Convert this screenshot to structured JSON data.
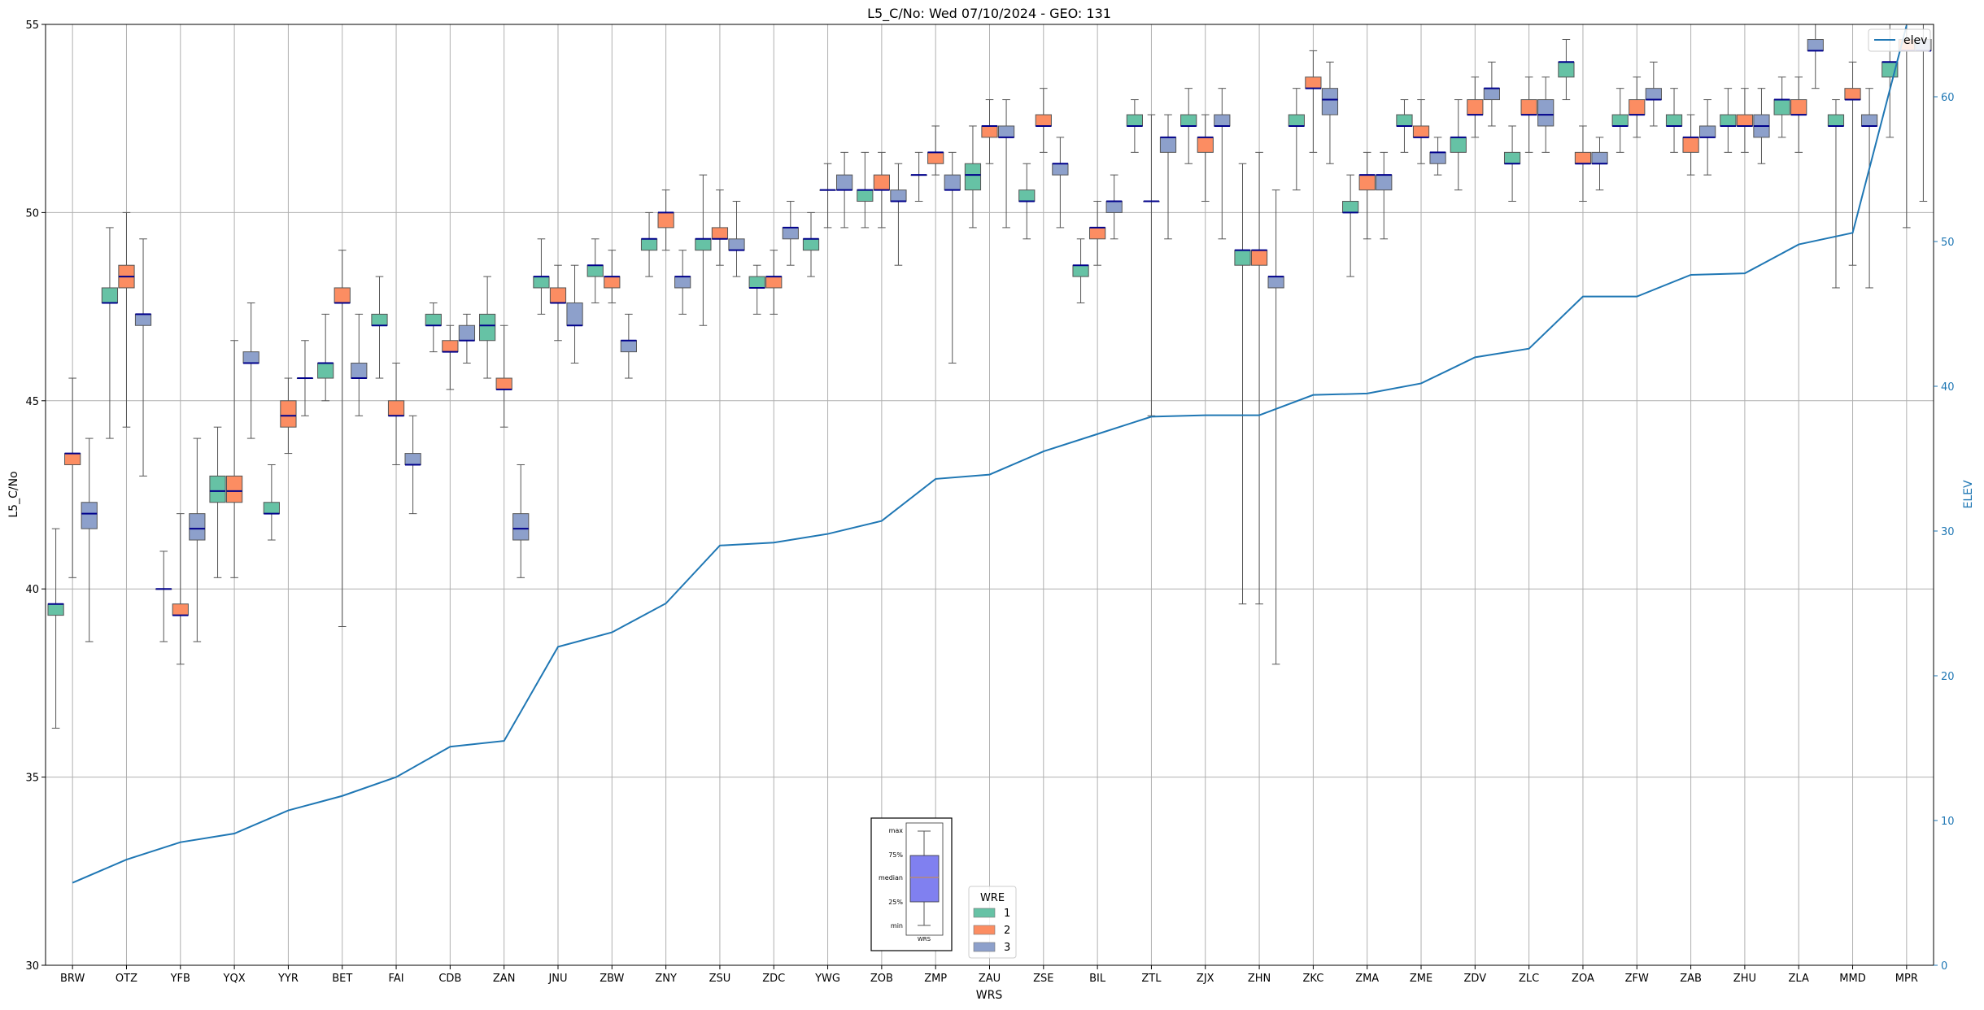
{
  "chart_data": {
    "type": "box",
    "title": "L5_C/No: Wed 07/10/2024 - GEO: 131",
    "xlabel": "WRS",
    "ylabel": "L5_C/No",
    "y2label": "ELEV",
    "ylim": [
      30,
      55
    ],
    "y2lim": [
      0,
      65
    ],
    "yticks": [
      30,
      35,
      40,
      45,
      50,
      55
    ],
    "y2ticks": [
      0,
      10,
      20,
      30,
      40,
      50,
      60
    ],
    "grid": true,
    "categories": [
      "BRW",
      "OTZ",
      "YFB",
      "YQX",
      "YYR",
      "BET",
      "FAI",
      "CDB",
      "ZAN",
      "JNU",
      "ZBW",
      "ZNY",
      "ZSU",
      "ZDC",
      "YWG",
      "ZOB",
      "ZMP",
      "ZAU",
      "ZSE",
      "BIL",
      "ZTL",
      "ZJX",
      "ZHN",
      "ZKC",
      "ZMA",
      "ZME",
      "ZDV",
      "ZLC",
      "ZOA",
      "ZFW",
      "ZAB",
      "ZHU",
      "ZLA",
      "MMD",
      "MPR"
    ],
    "wre_colors": {
      "1": "#66c2a5",
      "2": "#fc8d62",
      "3": "#8da0cb"
    },
    "legend_wre": {
      "title": "WRE",
      "entries": [
        "1",
        "2",
        "3"
      ],
      "position": "lower-center"
    },
    "legend_elev": {
      "label": "elev",
      "position": "upper-right",
      "color": "#1f77b4"
    },
    "box_key": {
      "labels": [
        "max",
        "75%",
        "median",
        "25%",
        "min"
      ],
      "xlabel": "WRS"
    },
    "boxes": [
      {
        "station": "BRW",
        "wre": 1,
        "min": 36.3,
        "q1": 39.3,
        "median": 39.6,
        "q3": 39.6,
        "max": 41.6
      },
      {
        "station": "BRW",
        "wre": 2,
        "min": 40.3,
        "q1": 43.3,
        "median": 43.6,
        "q3": 43.6,
        "max": 45.6
      },
      {
        "station": "BRW",
        "wre": 3,
        "min": 38.6,
        "q1": 41.6,
        "median": 42.0,
        "q3": 42.3,
        "max": 44.0
      },
      {
        "station": "OTZ",
        "wre": 1,
        "min": 44.0,
        "q1": 47.6,
        "median": 47.6,
        "q3": 48.0,
        "max": 49.6
      },
      {
        "station": "OTZ",
        "wre": 2,
        "min": 44.3,
        "q1": 48.0,
        "median": 48.3,
        "q3": 48.6,
        "max": 50.0
      },
      {
        "station": "OTZ",
        "wre": 3,
        "min": 43.0,
        "q1": 47.0,
        "median": 47.3,
        "q3": 47.3,
        "max": 49.3
      },
      {
        "station": "YFB",
        "wre": 1,
        "min": 38.6,
        "q1": 40.0,
        "median": 40.0,
        "q3": 40.0,
        "max": 41.0
      },
      {
        "station": "YFB",
        "wre": 2,
        "min": 38.0,
        "q1": 39.3,
        "median": 39.3,
        "q3": 39.6,
        "max": 42.0
      },
      {
        "station": "YFB",
        "wre": 3,
        "min": 38.6,
        "q1": 41.3,
        "median": 41.6,
        "q3": 42.0,
        "max": 44.0
      },
      {
        "station": "YQX",
        "wre": 1,
        "min": 40.3,
        "q1": 42.3,
        "median": 42.6,
        "q3": 43.0,
        "max": 44.3
      },
      {
        "station": "YQX",
        "wre": 2,
        "min": 40.3,
        "q1": 42.3,
        "median": 42.6,
        "q3": 43.0,
        "max": 46.6
      },
      {
        "station": "YQX",
        "wre": 3,
        "min": 44.0,
        "q1": 46.0,
        "median": 46.0,
        "q3": 46.3,
        "max": 47.6
      },
      {
        "station": "YYR",
        "wre": 1,
        "min": 41.3,
        "q1": 42.0,
        "median": 42.0,
        "q3": 42.3,
        "max": 43.3
      },
      {
        "station": "YYR",
        "wre": 2,
        "min": 43.6,
        "q1": 44.3,
        "median": 44.6,
        "q3": 45.0,
        "max": 45.6
      },
      {
        "station": "YYR",
        "wre": 3,
        "min": 44.6,
        "q1": 45.6,
        "median": 45.6,
        "q3": 45.6,
        "max": 46.6
      },
      {
        "station": "BET",
        "wre": 1,
        "min": 45.0,
        "q1": 45.6,
        "median": 46.0,
        "q3": 46.0,
        "max": 47.3
      },
      {
        "station": "BET",
        "wre": 2,
        "min": 39.0,
        "q1": 47.6,
        "median": 47.6,
        "q3": 48.0,
        "max": 49.0
      },
      {
        "station": "BET",
        "wre": 3,
        "min": 44.6,
        "q1": 45.6,
        "median": 45.6,
        "q3": 46.0,
        "max": 47.3
      },
      {
        "station": "FAI",
        "wre": 1,
        "min": 45.6,
        "q1": 47.0,
        "median": 47.0,
        "q3": 47.3,
        "max": 48.3
      },
      {
        "station": "FAI",
        "wre": 2,
        "min": 43.3,
        "q1": 44.6,
        "median": 44.6,
        "q3": 45.0,
        "max": 46.0
      },
      {
        "station": "FAI",
        "wre": 3,
        "min": 42.0,
        "q1": 43.3,
        "median": 43.3,
        "q3": 43.6,
        "max": 44.6
      },
      {
        "station": "CDB",
        "wre": 1,
        "min": 46.3,
        "q1": 47.0,
        "median": 47.0,
        "q3": 47.3,
        "max": 47.6
      },
      {
        "station": "CDB",
        "wre": 2,
        "min": 45.3,
        "q1": 46.3,
        "median": 46.3,
        "q3": 46.6,
        "max": 47.0
      },
      {
        "station": "CDB",
        "wre": 3,
        "min": 46.0,
        "q1": 46.6,
        "median": 46.6,
        "q3": 47.0,
        "max": 47.3
      },
      {
        "station": "ZAN",
        "wre": 1,
        "min": 45.6,
        "q1": 46.6,
        "median": 47.0,
        "q3": 47.3,
        "max": 48.3
      },
      {
        "station": "ZAN",
        "wre": 2,
        "min": 44.3,
        "q1": 45.3,
        "median": 45.3,
        "q3": 45.6,
        "max": 47.0
      },
      {
        "station": "ZAN",
        "wre": 3,
        "min": 40.3,
        "q1": 41.3,
        "median": 41.6,
        "q3": 42.0,
        "max": 43.3
      },
      {
        "station": "JNU",
        "wre": 1,
        "min": 47.3,
        "q1": 48.0,
        "median": 48.3,
        "q3": 48.3,
        "max": 49.3
      },
      {
        "station": "JNU",
        "wre": 2,
        "min": 46.6,
        "q1": 47.6,
        "median": 47.6,
        "q3": 48.0,
        "max": 48.6
      },
      {
        "station": "JNU",
        "wre": 3,
        "min": 46.0,
        "q1": 47.0,
        "median": 47.0,
        "q3": 47.6,
        "max": 48.6
      },
      {
        "station": "ZBW",
        "wre": 1,
        "min": 47.6,
        "q1": 48.3,
        "median": 48.6,
        "q3": 48.6,
        "max": 49.3
      },
      {
        "station": "ZBW",
        "wre": 2,
        "min": 47.6,
        "q1": 48.0,
        "median": 48.3,
        "q3": 48.3,
        "max": 49.0
      },
      {
        "station": "ZBW",
        "wre": 3,
        "min": 45.6,
        "q1": 46.3,
        "median": 46.6,
        "q3": 46.6,
        "max": 47.3
      },
      {
        "station": "ZNY",
        "wre": 1,
        "min": 48.3,
        "q1": 49.0,
        "median": 49.3,
        "q3": 49.3,
        "max": 50.0
      },
      {
        "station": "ZNY",
        "wre": 2,
        "min": 49.0,
        "q1": 49.6,
        "median": 50.0,
        "q3": 50.0,
        "max": 50.6
      },
      {
        "station": "ZNY",
        "wre": 3,
        "min": 47.3,
        "q1": 48.0,
        "median": 48.3,
        "q3": 48.3,
        "max": 49.0
      },
      {
        "station": "ZSU",
        "wre": 1,
        "min": 47.0,
        "q1": 49.0,
        "median": 49.3,
        "q3": 49.3,
        "max": 51.0
      },
      {
        "station": "ZSU",
        "wre": 2,
        "min": 48.6,
        "q1": 49.3,
        "median": 49.3,
        "q3": 49.6,
        "max": 50.6
      },
      {
        "station": "ZSU",
        "wre": 3,
        "min": 48.3,
        "q1": 49.0,
        "median": 49.0,
        "q3": 49.3,
        "max": 50.3
      },
      {
        "station": "ZDC",
        "wre": 1,
        "min": 47.3,
        "q1": 48.0,
        "median": 48.0,
        "q3": 48.3,
        "max": 48.6
      },
      {
        "station": "ZDC",
        "wre": 2,
        "min": 47.3,
        "q1": 48.0,
        "median": 48.3,
        "q3": 48.3,
        "max": 49.0
      },
      {
        "station": "ZDC",
        "wre": 3,
        "min": 48.6,
        "q1": 49.3,
        "median": 49.6,
        "q3": 49.6,
        "max": 50.3
      },
      {
        "station": "YWG",
        "wre": 1,
        "min": 48.3,
        "q1": 49.0,
        "median": 49.3,
        "q3": 49.3,
        "max": 50.0
      },
      {
        "station": "YWG",
        "wre": 2,
        "min": 49.6,
        "q1": 50.6,
        "median": 50.6,
        "q3": 50.6,
        "max": 51.3
      },
      {
        "station": "YWG",
        "wre": 3,
        "min": 49.6,
        "q1": 50.6,
        "median": 50.6,
        "q3": 51.0,
        "max": 51.6
      },
      {
        "station": "ZOB",
        "wre": 1,
        "min": 49.6,
        "q1": 50.3,
        "median": 50.6,
        "q3": 50.6,
        "max": 51.6
      },
      {
        "station": "ZOB",
        "wre": 2,
        "min": 49.6,
        "q1": 50.6,
        "median": 50.6,
        "q3": 51.0,
        "max": 51.6
      },
      {
        "station": "ZOB",
        "wre": 3,
        "min": 48.6,
        "q1": 50.3,
        "median": 50.3,
        "q3": 50.6,
        "max": 51.3
      },
      {
        "station": "ZMP",
        "wre": 1,
        "min": 50.3,
        "q1": 51.0,
        "median": 51.0,
        "q3": 51.0,
        "max": 51.6
      },
      {
        "station": "ZMP",
        "wre": 2,
        "min": 51.0,
        "q1": 51.3,
        "median": 51.6,
        "q3": 51.6,
        "max": 52.3
      },
      {
        "station": "ZMP",
        "wre": 3,
        "min": 46.0,
        "q1": 50.6,
        "median": 50.6,
        "q3": 51.0,
        "max": 51.6
      },
      {
        "station": "ZAU",
        "wre": 1,
        "min": 49.6,
        "q1": 50.6,
        "median": 51.0,
        "q3": 51.3,
        "max": 52.3
      },
      {
        "station": "ZAU",
        "wre": 2,
        "min": 51.3,
        "q1": 52.0,
        "median": 52.3,
        "q3": 52.3,
        "max": 53.0
      },
      {
        "station": "ZAU",
        "wre": 3,
        "min": 49.6,
        "q1": 52.0,
        "median": 52.0,
        "q3": 52.3,
        "max": 53.0
      },
      {
        "station": "ZSE",
        "wre": 1,
        "min": 49.3,
        "q1": 50.3,
        "median": 50.3,
        "q3": 50.6,
        "max": 51.3
      },
      {
        "station": "ZSE",
        "wre": 2,
        "min": 51.6,
        "q1": 52.3,
        "median": 52.3,
        "q3": 52.6,
        "max": 53.3
      },
      {
        "station": "ZSE",
        "wre": 3,
        "min": 49.6,
        "q1": 51.0,
        "median": 51.3,
        "q3": 51.3,
        "max": 52.0
      },
      {
        "station": "BIL",
        "wre": 1,
        "min": 47.6,
        "q1": 48.3,
        "median": 48.6,
        "q3": 48.6,
        "max": 49.3
      },
      {
        "station": "BIL",
        "wre": 2,
        "min": 48.6,
        "q1": 49.3,
        "median": 49.6,
        "q3": 49.6,
        "max": 50.3
      },
      {
        "station": "BIL",
        "wre": 3,
        "min": 49.3,
        "q1": 50.0,
        "median": 50.3,
        "q3": 50.3,
        "max": 51.0
      },
      {
        "station": "ZTL",
        "wre": 1,
        "min": 51.6,
        "q1": 52.3,
        "median": 52.3,
        "q3": 52.6,
        "max": 53.0
      },
      {
        "station": "ZTL",
        "wre": 2,
        "min": 44.6,
        "q1": 50.3,
        "median": 50.3,
        "q3": 50.3,
        "max": 52.6
      },
      {
        "station": "ZTL",
        "wre": 3,
        "min": 49.3,
        "q1": 51.6,
        "median": 52.0,
        "q3": 52.0,
        "max": 52.6
      },
      {
        "station": "ZJX",
        "wre": 1,
        "min": 51.3,
        "q1": 52.3,
        "median": 52.3,
        "q3": 52.6,
        "max": 53.3
      },
      {
        "station": "ZJX",
        "wre": 2,
        "min": 50.3,
        "q1": 51.6,
        "median": 52.0,
        "q3": 52.0,
        "max": 52.6
      },
      {
        "station": "ZJX",
        "wre": 3,
        "min": 49.3,
        "q1": 52.3,
        "median": 52.3,
        "q3": 52.6,
        "max": 53.3
      },
      {
        "station": "ZHN",
        "wre": 1,
        "min": 39.6,
        "q1": 48.6,
        "median": 49.0,
        "q3": 49.0,
        "max": 51.3
      },
      {
        "station": "ZHN",
        "wre": 2,
        "min": 39.6,
        "q1": 48.6,
        "median": 49.0,
        "q3": 49.0,
        "max": 51.6
      },
      {
        "station": "ZHN",
        "wre": 3,
        "min": 38.0,
        "q1": 48.0,
        "median": 48.3,
        "q3": 48.3,
        "max": 50.6
      },
      {
        "station": "ZKC",
        "wre": 1,
        "min": 50.6,
        "q1": 52.3,
        "median": 52.3,
        "q3": 52.6,
        "max": 53.3
      },
      {
        "station": "ZKC",
        "wre": 2,
        "min": 51.6,
        "q1": 53.3,
        "median": 53.3,
        "q3": 53.6,
        "max": 54.3
      },
      {
        "station": "ZKC",
        "wre": 3,
        "min": 51.3,
        "q1": 52.6,
        "median": 53.0,
        "q3": 53.3,
        "max": 54.0
      },
      {
        "station": "ZMA",
        "wre": 1,
        "min": 48.3,
        "q1": 50.0,
        "median": 50.0,
        "q3": 50.3,
        "max": 51.0
      },
      {
        "station": "ZMA",
        "wre": 2,
        "min": 49.3,
        "q1": 50.6,
        "median": 51.0,
        "q3": 51.0,
        "max": 51.6
      },
      {
        "station": "ZMA",
        "wre": 3,
        "min": 49.3,
        "q1": 50.6,
        "median": 51.0,
        "q3": 51.0,
        "max": 51.6
      },
      {
        "station": "ZME",
        "wre": 1,
        "min": 51.6,
        "q1": 52.3,
        "median": 52.3,
        "q3": 52.6,
        "max": 53.0
      },
      {
        "station": "ZME",
        "wre": 2,
        "min": 51.3,
        "q1": 52.0,
        "median": 52.0,
        "q3": 52.3,
        "max": 53.0
      },
      {
        "station": "ZME",
        "wre": 3,
        "min": 51.0,
        "q1": 51.3,
        "median": 51.6,
        "q3": 51.6,
        "max": 52.0
      },
      {
        "station": "ZDV",
        "wre": 1,
        "min": 50.6,
        "q1": 51.6,
        "median": 52.0,
        "q3": 52.0,
        "max": 53.0
      },
      {
        "station": "ZDV",
        "wre": 2,
        "min": 52.0,
        "q1": 52.6,
        "median": 52.6,
        "q3": 53.0,
        "max": 53.6
      },
      {
        "station": "ZDV",
        "wre": 3,
        "min": 52.3,
        "q1": 53.0,
        "median": 53.3,
        "q3": 53.3,
        "max": 54.0
      },
      {
        "station": "ZLC",
        "wre": 1,
        "min": 50.3,
        "q1": 51.3,
        "median": 51.3,
        "q3": 51.6,
        "max": 52.3
      },
      {
        "station": "ZLC",
        "wre": 2,
        "min": 51.6,
        "q1": 52.6,
        "median": 52.6,
        "q3": 53.0,
        "max": 53.6
      },
      {
        "station": "ZLC",
        "wre": 3,
        "min": 51.6,
        "q1": 52.3,
        "median": 52.6,
        "q3": 53.0,
        "max": 53.6
      },
      {
        "station": "ZOA",
        "wre": 1,
        "min": 53.0,
        "q1": 53.6,
        "median": 54.0,
        "q3": 54.0,
        "max": 54.6
      },
      {
        "station": "ZOA",
        "wre": 2,
        "min": 50.3,
        "q1": 51.3,
        "median": 51.3,
        "q3": 51.6,
        "max": 52.3
      },
      {
        "station": "ZOA",
        "wre": 3,
        "min": 50.6,
        "q1": 51.3,
        "median": 51.3,
        "q3": 51.6,
        "max": 52.0
      },
      {
        "station": "ZFW",
        "wre": 1,
        "min": 51.6,
        "q1": 52.3,
        "median": 52.3,
        "q3": 52.6,
        "max": 53.3
      },
      {
        "station": "ZFW",
        "wre": 2,
        "min": 52.0,
        "q1": 52.6,
        "median": 52.6,
        "q3": 53.0,
        "max": 53.6
      },
      {
        "station": "ZFW",
        "wre": 3,
        "min": 52.3,
        "q1": 53.0,
        "median": 53.0,
        "q3": 53.3,
        "max": 54.0
      },
      {
        "station": "ZAB",
        "wre": 1,
        "min": 51.6,
        "q1": 52.3,
        "median": 52.3,
        "q3": 52.6,
        "max": 53.3
      },
      {
        "station": "ZAB",
        "wre": 2,
        "min": 51.0,
        "q1": 51.6,
        "median": 52.0,
        "q3": 52.0,
        "max": 52.6
      },
      {
        "station": "ZAB",
        "wre": 3,
        "min": 51.0,
        "q1": 52.0,
        "median": 52.0,
        "q3": 52.3,
        "max": 53.0
      },
      {
        "station": "ZHU",
        "wre": 1,
        "min": 51.6,
        "q1": 52.3,
        "median": 52.3,
        "q3": 52.6,
        "max": 53.3
      },
      {
        "station": "ZHU",
        "wre": 2,
        "min": 51.6,
        "q1": 52.3,
        "median": 52.3,
        "q3": 52.6,
        "max": 53.3
      },
      {
        "station": "ZHU",
        "wre": 3,
        "min": 51.3,
        "q1": 52.0,
        "median": 52.3,
        "q3": 52.6,
        "max": 53.3
      },
      {
        "station": "ZLA",
        "wre": 1,
        "min": 52.0,
        "q1": 52.6,
        "median": 53.0,
        "q3": 53.0,
        "max": 53.6
      },
      {
        "station": "ZLA",
        "wre": 2,
        "min": 51.6,
        "q1": 52.6,
        "median": 52.6,
        "q3": 53.0,
        "max": 53.6
      },
      {
        "station": "ZLA",
        "wre": 3,
        "min": 53.3,
        "q1": 54.3,
        "median": 54.3,
        "q3": 54.6,
        "max": 55.0
      },
      {
        "station": "MMD",
        "wre": 1,
        "min": 48.0,
        "q1": 52.3,
        "median": 52.3,
        "q3": 52.6,
        "max": 53.0
      },
      {
        "station": "MMD",
        "wre": 2,
        "min": 48.6,
        "q1": 53.0,
        "median": 53.0,
        "q3": 53.3,
        "max": 54.0
      },
      {
        "station": "MMD",
        "wre": 3,
        "min": 48.0,
        "q1": 52.3,
        "median": 52.3,
        "q3": 52.6,
        "max": 53.3
      },
      {
        "station": "MPR",
        "wre": 1,
        "min": 52.0,
        "q1": 53.6,
        "median": 54.0,
        "q3": 54.0,
        "max": 55.0
      },
      {
        "station": "MPR",
        "wre": 2,
        "min": 49.6,
        "q1": 54.3,
        "median": 54.3,
        "q3": 54.6,
        "max": 55.0
      },
      {
        "station": "MPR",
        "wre": 3,
        "min": 50.3,
        "q1": 54.3,
        "median": 54.3,
        "q3": 54.6,
        "max": 55.0
      }
    ],
    "series": [
      {
        "name": "elev",
        "axis": "y2",
        "values": [
          5.7,
          7.3,
          8.5,
          9.1,
          10.7,
          11.7,
          13.0,
          15.1,
          15.5,
          22.0,
          23.0,
          25.0,
          29.0,
          29.2,
          29.8,
          30.7,
          33.6,
          33.9,
          35.5,
          36.7,
          37.9,
          38.0,
          38.0,
          39.4,
          39.5,
          40.2,
          42.0,
          42.6,
          46.2,
          46.2,
          47.7,
          47.8,
          49.8,
          50.6,
          66.0
        ]
      }
    ]
  }
}
